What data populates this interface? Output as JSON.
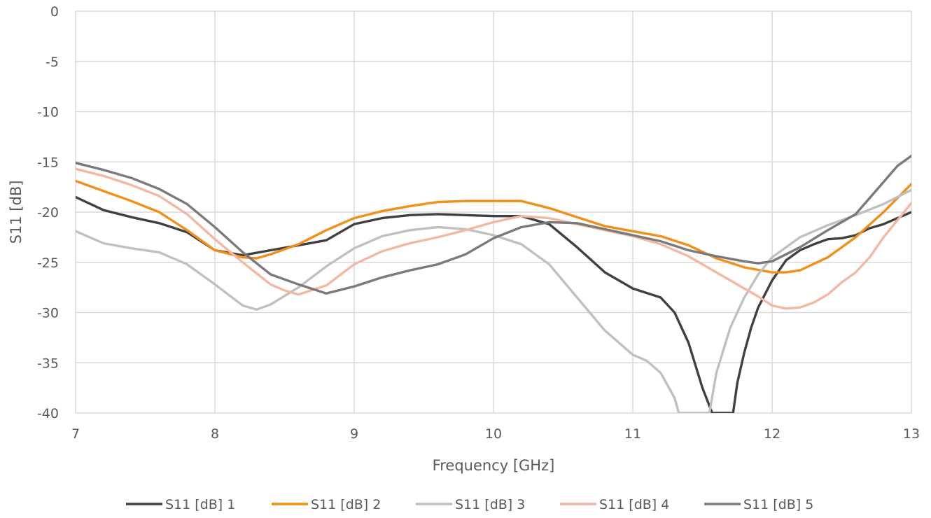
{
  "chart_data": {
    "type": "line",
    "title": "",
    "xlabel": "Frequency [GHz]",
    "ylabel": "S11 [dB]",
    "xlim": [
      7,
      13
    ],
    "ylim": [
      -40,
      0
    ],
    "x_ticks": [
      "7",
      "8",
      "9",
      "10",
      "11",
      "12",
      "13"
    ],
    "y_ticks": [
      "0",
      "-5",
      "-10",
      "-15",
      "-20",
      "-25",
      "-30",
      "-35",
      "-40"
    ],
    "grid": true,
    "legend_position": "bottom",
    "series": [
      {
        "name": "S11 [dB] 1",
        "color": "#404040",
        "x": [
          7.0,
          7.2,
          7.4,
          7.6,
          7.8,
          8.0,
          8.2,
          8.4,
          8.6,
          8.8,
          9.0,
          9.2,
          9.4,
          9.6,
          9.8,
          10.0,
          10.2,
          10.4,
          10.6,
          10.8,
          11.0,
          11.2,
          11.3,
          11.4,
          11.5,
          11.57,
          11.6,
          11.72,
          11.75,
          11.8,
          11.85,
          11.9,
          12.0,
          12.1,
          12.2,
          12.3,
          12.4,
          12.5,
          12.6,
          12.7,
          12.8,
          12.9,
          13.0
        ],
        "y": [
          -18.5,
          -19.8,
          -20.5,
          -21.1,
          -22.0,
          -23.8,
          -24.3,
          -23.8,
          -23.3,
          -22.8,
          -21.2,
          -20.6,
          -20.3,
          -20.2,
          -20.3,
          -20.4,
          -20.4,
          -21.2,
          -23.5,
          -26.0,
          -27.6,
          -28.5,
          -30.0,
          -33.0,
          -37.5,
          -40.0,
          -40.0,
          -40.0,
          -37.0,
          -34.0,
          -31.5,
          -29.5,
          -26.8,
          -24.8,
          -23.8,
          -23.2,
          -22.7,
          -22.6,
          -22.3,
          -21.6,
          -21.2,
          -20.6,
          -20.0
        ]
      },
      {
        "name": "S11 [dB] 2",
        "color": "#f28e1a",
        "x": [
          7.0,
          7.2,
          7.4,
          7.6,
          7.8,
          8.0,
          8.2,
          8.3,
          8.4,
          8.6,
          8.8,
          9.0,
          9.2,
          9.4,
          9.6,
          9.8,
          10.0,
          10.2,
          10.4,
          10.6,
          10.8,
          11.0,
          11.2,
          11.4,
          11.6,
          11.8,
          12.0,
          12.1,
          12.2,
          12.4,
          12.6,
          12.8,
          13.0
        ],
        "y": [
          -16.9,
          -17.9,
          -18.9,
          -20.0,
          -21.8,
          -23.8,
          -24.5,
          -24.6,
          -24.2,
          -23.2,
          -21.8,
          -20.6,
          -19.9,
          -19.4,
          -19.0,
          -18.9,
          -18.9,
          -18.9,
          -19.6,
          -20.5,
          -21.4,
          -21.9,
          -22.4,
          -23.3,
          -24.6,
          -25.5,
          -26.0,
          -26.0,
          -25.8,
          -24.5,
          -22.5,
          -20.0,
          -17.2
        ]
      },
      {
        "name": "S11 [dB] 3",
        "color": "#c0c0c0",
        "x": [
          7.0,
          7.2,
          7.4,
          7.6,
          7.8,
          8.0,
          8.2,
          8.3,
          8.4,
          8.6,
          8.8,
          9.0,
          9.2,
          9.4,
          9.6,
          9.8,
          10.0,
          10.2,
          10.4,
          10.6,
          10.8,
          11.0,
          11.1,
          11.2,
          11.3,
          11.33,
          11.55,
          11.6,
          11.7,
          11.8,
          11.9,
          12.0,
          12.2,
          12.4,
          12.6,
          12.8,
          13.0
        ],
        "y": [
          -21.9,
          -23.1,
          -23.6,
          -24.0,
          -25.2,
          -27.2,
          -29.3,
          -29.7,
          -29.2,
          -27.5,
          -25.4,
          -23.6,
          -22.4,
          -21.8,
          -21.5,
          -21.7,
          -22.3,
          -23.2,
          -25.2,
          -28.5,
          -31.8,
          -34.2,
          -34.8,
          -36.0,
          -38.5,
          -40.0,
          -40.0,
          -36.0,
          -31.5,
          -28.5,
          -26.2,
          -24.5,
          -22.5,
          -21.3,
          -20.3,
          -19.2,
          -17.8
        ]
      },
      {
        "name": "S11 [dB] 4",
        "color": "#f2b9a0",
        "x": [
          7.0,
          7.2,
          7.4,
          7.6,
          7.8,
          8.0,
          8.2,
          8.4,
          8.5,
          8.6,
          8.8,
          9.0,
          9.2,
          9.4,
          9.6,
          9.8,
          10.0,
          10.2,
          10.4,
          10.6,
          10.8,
          11.0,
          11.2,
          11.4,
          11.6,
          11.8,
          11.9,
          12.0,
          12.1,
          12.2,
          12.3,
          12.4,
          12.5,
          12.6,
          12.7,
          12.8,
          12.9,
          13.0
        ],
        "y": [
          -15.7,
          -16.4,
          -17.3,
          -18.4,
          -20.2,
          -22.7,
          -25.0,
          -27.2,
          -27.8,
          -28.2,
          -27.3,
          -25.2,
          -23.9,
          -23.1,
          -22.5,
          -21.8,
          -21.0,
          -20.4,
          -20.6,
          -21.2,
          -21.8,
          -22.4,
          -23.2,
          -24.4,
          -26.0,
          -27.6,
          -28.4,
          -29.3,
          -29.6,
          -29.5,
          -29.0,
          -28.2,
          -27.0,
          -26.0,
          -24.5,
          -22.5,
          -20.8,
          -19.1
        ]
      },
      {
        "name": "S11 [dB] 5",
        "color": "#7a7a7a",
        "x": [
          7.0,
          7.2,
          7.4,
          7.6,
          7.8,
          8.0,
          8.2,
          8.4,
          8.6,
          8.8,
          9.0,
          9.2,
          9.4,
          9.6,
          9.8,
          10.0,
          10.2,
          10.4,
          10.6,
          10.8,
          11.0,
          11.2,
          11.4,
          11.6,
          11.8,
          11.9,
          12.0,
          12.1,
          12.2,
          12.4,
          12.6,
          12.8,
          12.9,
          13.0
        ],
        "y": [
          -15.1,
          -15.8,
          -16.6,
          -17.7,
          -19.2,
          -21.5,
          -24.0,
          -26.2,
          -27.2,
          -28.1,
          -27.4,
          -26.5,
          -25.8,
          -25.2,
          -24.2,
          -22.6,
          -21.5,
          -21.0,
          -21.1,
          -21.7,
          -22.3,
          -22.9,
          -23.8,
          -24.4,
          -24.9,
          -25.1,
          -24.9,
          -24.2,
          -23.5,
          -21.8,
          -20.2,
          -17.0,
          -15.4,
          -14.4
        ]
      }
    ]
  }
}
